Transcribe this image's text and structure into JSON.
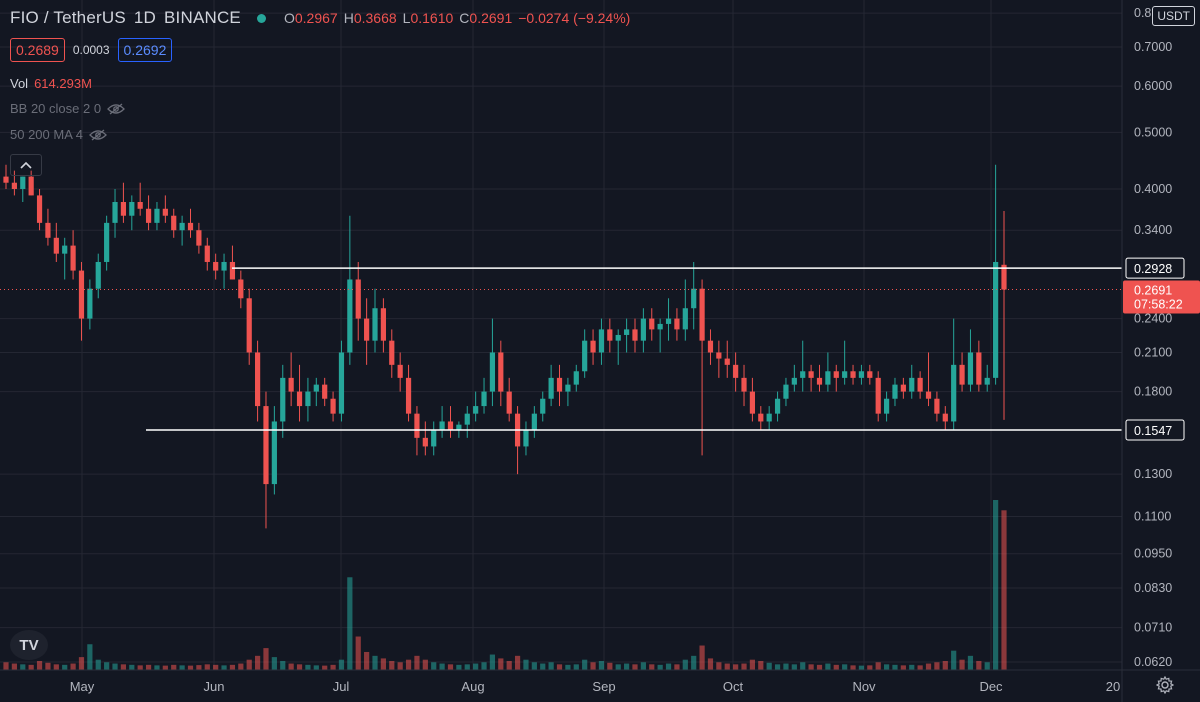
{
  "header": {
    "title": "FIO / TetherUS",
    "interval": "1D",
    "exchange": "BINANCE",
    "ohlc": [
      {
        "label": "O",
        "value": "0.2967"
      },
      {
        "label": "H",
        "value": "0.3668"
      },
      {
        "label": "L",
        "value": "0.1610"
      },
      {
        "label": "C",
        "value": "0.2691"
      }
    ],
    "change": "−0.0274 (−9.24%)"
  },
  "quote": {
    "bid": "0.2689",
    "spread": "0.0003",
    "ask": "0.2692"
  },
  "indicators": {
    "vol_label": "Vol",
    "vol_value": "614.293M",
    "bb_label": "BB 20 close 2 0",
    "ma_label": "50 200 MA 4"
  },
  "currency": "USDT",
  "logo_text": "TV",
  "colors": {
    "up": "#26a69a",
    "down": "#ef5350",
    "background": "#131722",
    "grid": "#242733",
    "level": "#ffffff"
  },
  "chart_data": {
    "type": "candlestick",
    "y_scale": "log",
    "y_ticks": [
      {
        "value": 0.8,
        "label": "0.8"
      },
      {
        "value": 0.7,
        "label": "0.7000"
      },
      {
        "value": 0.6,
        "label": "0.6000"
      },
      {
        "value": 0.5,
        "label": "0.5000"
      },
      {
        "value": 0.4,
        "label": "0.4000"
      },
      {
        "value": 0.34,
        "label": "0.3400"
      },
      {
        "value": 0.24,
        "label": "0.2400"
      },
      {
        "value": 0.21,
        "label": "0.2100"
      },
      {
        "value": 0.18,
        "label": "0.1800"
      },
      {
        "value": 0.13,
        "label": "0.1300"
      },
      {
        "value": 0.11,
        "label": "0.1100"
      },
      {
        "value": 0.095,
        "label": "0.0950"
      },
      {
        "value": 0.083,
        "label": "0.0830"
      },
      {
        "value": 0.071,
        "label": "0.0710"
      },
      {
        "value": 0.062,
        "label": "0.0620"
      }
    ],
    "x_ticks": [
      "May",
      "Jun",
      "Jul",
      "Aug",
      "Sep",
      "Oct",
      "Nov",
      "Dec",
      "20"
    ],
    "levels": [
      {
        "value": 0.2928,
        "label": "0.2928"
      },
      {
        "value": 0.1547,
        "label": "0.1547"
      }
    ],
    "last_price": {
      "value": 0.2691,
      "label": "0.2691",
      "countdown": "07:58:22"
    },
    "candles": [
      [
        0.42,
        0.44,
        0.4,
        0.41
      ],
      [
        0.41,
        0.43,
        0.39,
        0.4
      ],
      [
        0.4,
        0.42,
        0.38,
        0.42
      ],
      [
        0.42,
        0.43,
        0.39,
        0.39
      ],
      [
        0.39,
        0.4,
        0.34,
        0.35
      ],
      [
        0.35,
        0.37,
        0.32,
        0.33
      ],
      [
        0.33,
        0.35,
        0.3,
        0.31
      ],
      [
        0.31,
        0.33,
        0.28,
        0.32
      ],
      [
        0.32,
        0.34,
        0.28,
        0.29
      ],
      [
        0.29,
        0.3,
        0.22,
        0.24
      ],
      [
        0.24,
        0.28,
        0.23,
        0.27
      ],
      [
        0.27,
        0.31,
        0.26,
        0.3
      ],
      [
        0.3,
        0.36,
        0.29,
        0.35
      ],
      [
        0.35,
        0.4,
        0.33,
        0.38
      ],
      [
        0.38,
        0.41,
        0.35,
        0.36
      ],
      [
        0.36,
        0.39,
        0.34,
        0.38
      ],
      [
        0.38,
        0.41,
        0.36,
        0.37
      ],
      [
        0.37,
        0.39,
        0.34,
        0.35
      ],
      [
        0.35,
        0.38,
        0.34,
        0.37
      ],
      [
        0.37,
        0.39,
        0.35,
        0.36
      ],
      [
        0.36,
        0.37,
        0.33,
        0.34
      ],
      [
        0.34,
        0.36,
        0.32,
        0.35
      ],
      [
        0.35,
        0.37,
        0.33,
        0.34
      ],
      [
        0.34,
        0.35,
        0.31,
        0.32
      ],
      [
        0.32,
        0.33,
        0.29,
        0.3
      ],
      [
        0.3,
        0.31,
        0.28,
        0.29
      ],
      [
        0.29,
        0.31,
        0.27,
        0.3
      ],
      [
        0.3,
        0.32,
        0.28,
        0.28
      ],
      [
        0.28,
        0.29,
        0.25,
        0.26
      ],
      [
        0.26,
        0.27,
        0.2,
        0.21
      ],
      [
        0.21,
        0.22,
        0.16,
        0.17
      ],
      [
        0.17,
        0.18,
        0.105,
        0.125
      ],
      [
        0.125,
        0.17,
        0.12,
        0.16
      ],
      [
        0.16,
        0.2,
        0.15,
        0.19
      ],
      [
        0.19,
        0.21,
        0.17,
        0.18
      ],
      [
        0.18,
        0.2,
        0.16,
        0.17
      ],
      [
        0.17,
        0.19,
        0.16,
        0.18
      ],
      [
        0.18,
        0.19,
        0.17,
        0.185
      ],
      [
        0.185,
        0.19,
        0.17,
        0.175
      ],
      [
        0.175,
        0.18,
        0.16,
        0.165
      ],
      [
        0.165,
        0.22,
        0.16,
        0.21
      ],
      [
        0.21,
        0.36,
        0.2,
        0.28
      ],
      [
        0.28,
        0.3,
        0.22,
        0.24
      ],
      [
        0.24,
        0.26,
        0.2,
        0.22
      ],
      [
        0.22,
        0.27,
        0.21,
        0.25
      ],
      [
        0.25,
        0.26,
        0.21,
        0.22
      ],
      [
        0.22,
        0.23,
        0.19,
        0.2
      ],
      [
        0.2,
        0.21,
        0.18,
        0.19
      ],
      [
        0.19,
        0.2,
        0.16,
        0.165
      ],
      [
        0.165,
        0.17,
        0.14,
        0.15
      ],
      [
        0.15,
        0.16,
        0.14,
        0.145
      ],
      [
        0.145,
        0.16,
        0.14,
        0.155
      ],
      [
        0.155,
        0.17,
        0.15,
        0.16
      ],
      [
        0.16,
        0.17,
        0.15,
        0.155
      ],
      [
        0.155,
        0.16,
        0.15,
        0.158
      ],
      [
        0.158,
        0.17,
        0.15,
        0.165
      ],
      [
        0.165,
        0.18,
        0.16,
        0.17
      ],
      [
        0.17,
        0.19,
        0.165,
        0.18
      ],
      [
        0.18,
        0.24,
        0.17,
        0.21
      ],
      [
        0.21,
        0.22,
        0.17,
        0.18
      ],
      [
        0.18,
        0.19,
        0.16,
        0.165
      ],
      [
        0.165,
        0.17,
        0.13,
        0.145
      ],
      [
        0.145,
        0.16,
        0.14,
        0.155
      ],
      [
        0.155,
        0.17,
        0.15,
        0.165
      ],
      [
        0.165,
        0.18,
        0.16,
        0.175
      ],
      [
        0.175,
        0.2,
        0.17,
        0.19
      ],
      [
        0.19,
        0.2,
        0.17,
        0.18
      ],
      [
        0.18,
        0.19,
        0.17,
        0.185
      ],
      [
        0.185,
        0.2,
        0.18,
        0.195
      ],
      [
        0.195,
        0.23,
        0.19,
        0.22
      ],
      [
        0.22,
        0.23,
        0.2,
        0.21
      ],
      [
        0.21,
        0.24,
        0.2,
        0.23
      ],
      [
        0.23,
        0.24,
        0.21,
        0.22
      ],
      [
        0.22,
        0.23,
        0.2,
        0.225
      ],
      [
        0.225,
        0.24,
        0.21,
        0.23
      ],
      [
        0.23,
        0.24,
        0.21,
        0.22
      ],
      [
        0.22,
        0.25,
        0.21,
        0.24
      ],
      [
        0.24,
        0.25,
        0.22,
        0.23
      ],
      [
        0.23,
        0.24,
        0.21,
        0.235
      ],
      [
        0.235,
        0.26,
        0.22,
        0.24
      ],
      [
        0.24,
        0.25,
        0.22,
        0.23
      ],
      [
        0.23,
        0.28,
        0.22,
        0.25
      ],
      [
        0.25,
        0.3,
        0.23,
        0.27
      ],
      [
        0.27,
        0.28,
        0.14,
        0.22
      ],
      [
        0.22,
        0.23,
        0.2,
        0.21
      ],
      [
        0.21,
        0.22,
        0.19,
        0.205
      ],
      [
        0.205,
        0.22,
        0.19,
        0.2
      ],
      [
        0.2,
        0.21,
        0.18,
        0.19
      ],
      [
        0.19,
        0.2,
        0.17,
        0.18
      ],
      [
        0.18,
        0.19,
        0.16,
        0.165
      ],
      [
        0.165,
        0.17,
        0.155,
        0.16
      ],
      [
        0.16,
        0.17,
        0.155,
        0.165
      ],
      [
        0.165,
        0.18,
        0.16,
        0.175
      ],
      [
        0.175,
        0.19,
        0.17,
        0.185
      ],
      [
        0.185,
        0.2,
        0.18,
        0.19
      ],
      [
        0.19,
        0.22,
        0.18,
        0.195
      ],
      [
        0.195,
        0.2,
        0.18,
        0.19
      ],
      [
        0.19,
        0.2,
        0.18,
        0.185
      ],
      [
        0.185,
        0.21,
        0.18,
        0.195
      ],
      [
        0.195,
        0.2,
        0.18,
        0.19
      ],
      [
        0.19,
        0.22,
        0.185,
        0.195
      ],
      [
        0.195,
        0.2,
        0.185,
        0.19
      ],
      [
        0.19,
        0.2,
        0.185,
        0.195
      ],
      [
        0.195,
        0.2,
        0.185,
        0.19
      ],
      [
        0.19,
        0.195,
        0.16,
        0.165
      ],
      [
        0.165,
        0.18,
        0.16,
        0.175
      ],
      [
        0.175,
        0.19,
        0.17,
        0.185
      ],
      [
        0.185,
        0.19,
        0.175,
        0.18
      ],
      [
        0.18,
        0.2,
        0.175,
        0.19
      ],
      [
        0.19,
        0.195,
        0.175,
        0.18
      ],
      [
        0.18,
        0.21,
        0.17,
        0.175
      ],
      [
        0.175,
        0.18,
        0.16,
        0.165
      ],
      [
        0.165,
        0.17,
        0.155,
        0.16
      ],
      [
        0.16,
        0.24,
        0.155,
        0.2
      ],
      [
        0.2,
        0.21,
        0.18,
        0.185
      ],
      [
        0.185,
        0.23,
        0.18,
        0.21
      ],
      [
        0.21,
        0.22,
        0.18,
        0.185
      ],
      [
        0.185,
        0.2,
        0.18,
        0.19
      ],
      [
        0.19,
        0.44,
        0.185,
        0.3
      ],
      [
        0.2967,
        0.3668,
        0.161,
        0.2691
      ]
    ],
    "volumes": [
      0.3,
      0.25,
      0.22,
      0.2,
      0.35,
      0.28,
      0.22,
      0.2,
      0.25,
      0.5,
      1.0,
      0.4,
      0.3,
      0.25,
      0.22,
      0.2,
      0.18,
      0.2,
      0.18,
      0.17,
      0.2,
      0.18,
      0.17,
      0.19,
      0.22,
      0.2,
      0.18,
      0.2,
      0.25,
      0.4,
      0.55,
      0.85,
      0.5,
      0.35,
      0.25,
      0.22,
      0.2,
      0.18,
      0.17,
      0.2,
      0.4,
      3.6,
      1.3,
      0.7,
      0.55,
      0.45,
      0.35,
      0.3,
      0.4,
      0.55,
      0.4,
      0.3,
      0.25,
      0.22,
      0.2,
      0.22,
      0.25,
      0.3,
      0.6,
      0.45,
      0.35,
      0.55,
      0.4,
      0.3,
      0.25,
      0.3,
      0.22,
      0.2,
      0.22,
      0.4,
      0.3,
      0.35,
      0.28,
      0.22,
      0.25,
      0.22,
      0.3,
      0.22,
      0.2,
      0.25,
      0.22,
      0.4,
      0.55,
      0.95,
      0.45,
      0.3,
      0.25,
      0.22,
      0.25,
      0.4,
      0.35,
      0.28,
      0.22,
      0.25,
      0.22,
      0.3,
      0.22,
      0.2,
      0.25,
      0.2,
      0.22,
      0.18,
      0.17,
      0.18,
      0.3,
      0.22,
      0.2,
      0.18,
      0.2,
      0.18,
      0.25,
      0.3,
      0.35,
      0.75,
      0.4,
      0.55,
      0.35,
      0.3,
      6.6,
      6.2
    ]
  }
}
